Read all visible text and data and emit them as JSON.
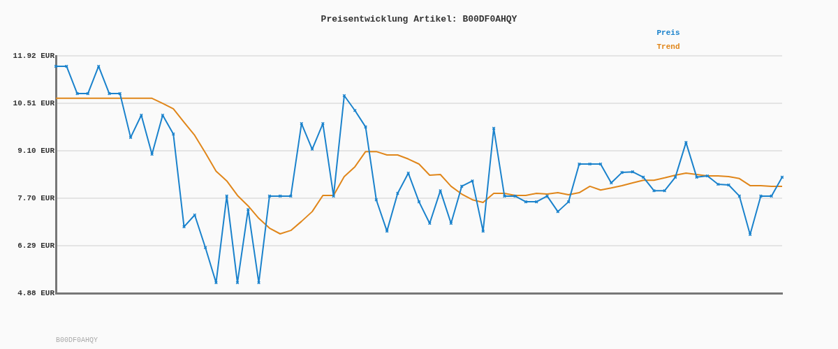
{
  "chart_data": {
    "type": "line",
    "title": "Preisentwicklung Artikel: B00DF0AHQY",
    "categories": [
      null,
      null,
      null,
      null,
      null,
      null,
      null,
      null,
      null,
      null,
      null,
      null,
      null,
      null,
      null,
      null,
      null,
      null,
      null,
      null,
      null,
      null,
      null,
      null,
      null,
      null,
      null,
      null,
      null,
      null,
      null,
      null,
      null,
      null,
      null,
      null,
      null,
      null,
      null,
      null,
      null,
      null,
      null,
      null,
      null,
      null,
      null,
      null,
      null,
      null,
      null,
      null,
      null,
      null,
      null,
      null,
      null,
      null,
      null,
      null,
      null,
      null,
      null,
      null,
      null,
      null,
      null,
      null,
      null
    ],
    "series": [
      {
        "name": "Preis",
        "color": "#1a82cc",
        "marker": "cross",
        "values": [
          11.61,
          11.61,
          10.8,
          10.8,
          11.61,
          10.8,
          10.8,
          9.5,
          10.16,
          9.0,
          10.16,
          9.6,
          6.85,
          7.2,
          6.23,
          5.19,
          7.76,
          5.19,
          7.36,
          5.19,
          7.76,
          7.76,
          7.76,
          9.91,
          9.15,
          9.91,
          7.76,
          10.74,
          10.3,
          9.81,
          7.65,
          6.72,
          7.84,
          8.44,
          7.59,
          6.95,
          7.92,
          6.95,
          8.05,
          8.21,
          6.72,
          9.77,
          7.76,
          7.76,
          7.59,
          7.59,
          7.76,
          7.3,
          7.59,
          8.71,
          8.71,
          8.71,
          8.15,
          8.46,
          8.48,
          8.32,
          7.92,
          7.92,
          8.32,
          9.35,
          8.32,
          8.36,
          8.11,
          8.09,
          7.76,
          6.62,
          7.76,
          7.76,
          8.32
        ]
      },
      {
        "name": "Trend",
        "color": "#e0861a",
        "marker": "none",
        "values": [
          10.66,
          10.66,
          10.66,
          10.66,
          10.66,
          10.66,
          10.66,
          10.66,
          10.66,
          10.66,
          10.51,
          10.35,
          9.95,
          9.56,
          9.04,
          8.5,
          8.21,
          7.78,
          7.47,
          7.1,
          6.81,
          6.64,
          6.74,
          7.01,
          7.3,
          7.78,
          7.78,
          8.34,
          8.63,
          9.08,
          9.08,
          8.98,
          8.98,
          8.86,
          8.71,
          8.38,
          8.4,
          8.05,
          7.82,
          7.65,
          7.57,
          7.84,
          7.84,
          7.78,
          7.78,
          7.84,
          7.82,
          7.86,
          7.8,
          7.86,
          8.05,
          7.94,
          8.0,
          8.07,
          8.15,
          8.23,
          8.23,
          8.3,
          8.38,
          8.44,
          8.4,
          8.36,
          8.36,
          8.34,
          8.28,
          8.07,
          8.07,
          8.05,
          8.05
        ]
      }
    ],
    "ylim": [
      4.88,
      11.92
    ],
    "yticks": [
      {
        "value": 4.88,
        "label": "4.88 EUR"
      },
      {
        "value": 6.29,
        "label": "6.29 EUR"
      },
      {
        "value": 7.7,
        "label": "7.70 EUR"
      },
      {
        "value": 9.1,
        "label": "9.10 EUR"
      },
      {
        "value": 10.51,
        "label": "10.51 EUR"
      },
      {
        "value": 11.92,
        "label": "11.92 EUR"
      }
    ],
    "grid": "y",
    "legend": "top right",
    "line_style": "solid",
    "annotations": [
      "B00DF0AHQY"
    ]
  }
}
